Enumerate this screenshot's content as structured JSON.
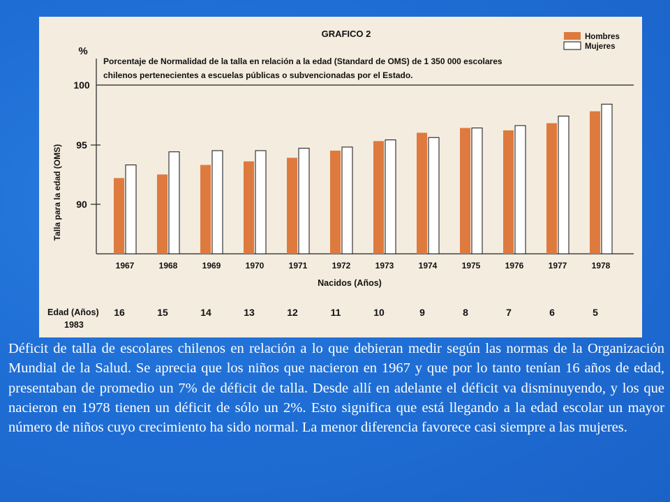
{
  "caption": "Déficit de talla de escolares chilenos en relación a lo que debieran medir según las normas de la Organización Mundial de la Salud. Se aprecia que los niños que nacieron en 1967 y que por lo tanto tenían 16 años de edad, presentaban de promedio un 7% de déficit de talla. Desde allí en adelante el déficit va disminuyendo, y los que nacieron en 1978 tienen un déficit de sólo un 2%. Esto significa que está llegando a la edad escolar un mayor número de niños cuyo crecimiento ha sido normal. La menor diferencia favorece casi siempre a las mujeres.",
  "colors": {
    "hombres": "#de7a3e",
    "mujeres": "#ffffff",
    "frame": "#f4ecdf",
    "background": "#1f6fd6"
  },
  "chart_data": {
    "type": "bar",
    "title": "GRAFICO 2",
    "subtitle_line1": "Porcentaje de Normalidad de la talla en relación a la edad (Standard de OMS) de 1 350 000 escolares",
    "subtitle_line2": "chilenos pertenecientes a escuelas públicas o subvencionadas por el Estado.",
    "y_unit": "%",
    "ylabel": "Talla para la edad (OMS)",
    "xlabel": "Nacidos (Años)",
    "ylim": [
      86,
      101
    ],
    "yticks": [
      "100",
      "95",
      "90"
    ],
    "reference_line": 100,
    "categories": [
      "1967",
      "1968",
      "1969",
      "1970",
      "1971",
      "1972",
      "1973",
      "1974",
      "1975",
      "1976",
      "1977",
      "1978"
    ],
    "series": [
      {
        "name": "Hombres",
        "values": [
          92.2,
          92.5,
          93.3,
          93.6,
          93.9,
          94.5,
          95.3,
          96.0,
          96.4,
          96.2,
          96.8,
          97.8
        ]
      },
      {
        "name": "Mujeres",
        "values": [
          93.3,
          94.4,
          94.5,
          94.5,
          94.7,
          94.8,
          95.4,
          95.6,
          96.4,
          96.6,
          97.4,
          98.4
        ]
      }
    ],
    "age_label_line1": "Edad (Años)",
    "age_label_line2": "1983",
    "ages": [
      "16",
      "15",
      "14",
      "13",
      "12",
      "11",
      "10",
      "9",
      "8",
      "7",
      "6",
      "5"
    ],
    "legend_position": "top-right",
    "grid": false
  }
}
